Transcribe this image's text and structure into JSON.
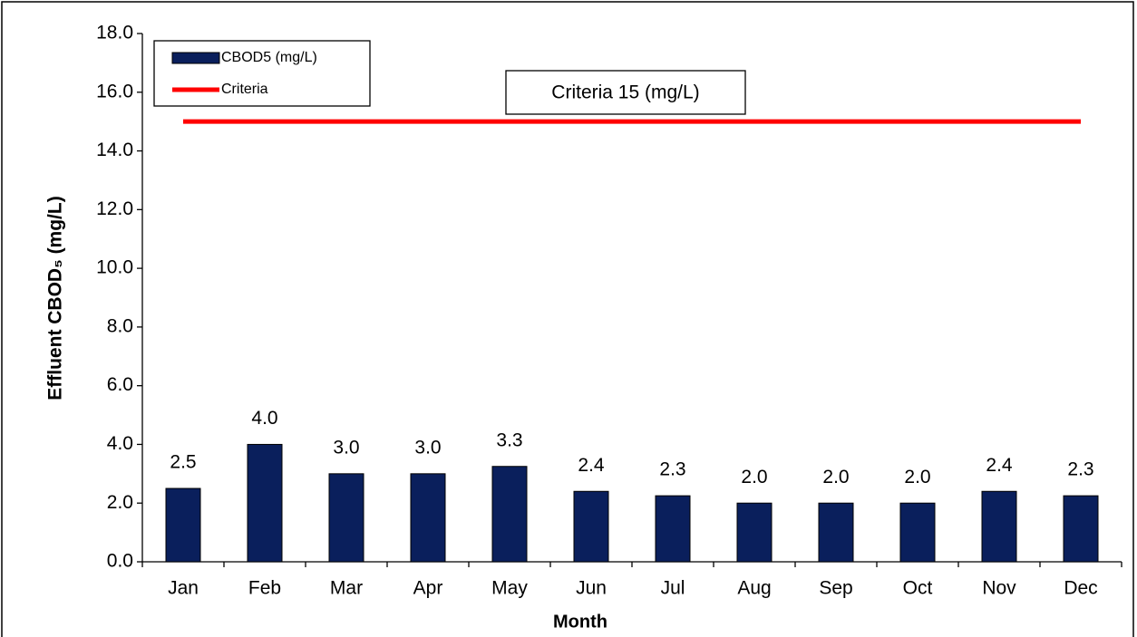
{
  "chart_data": {
    "type": "bar",
    "y_label": "Effluent CBOD₅ (mg/L)",
    "x_label": "Month",
    "annotation": "Criteria 15 (mg/L)",
    "categories": [
      "Jan",
      "Feb",
      "Mar",
      "Apr",
      "May",
      "Jun",
      "Jul",
      "Aug",
      "Sep",
      "Oct",
      "Nov",
      "Dec"
    ],
    "series": [
      {
        "name": "CBOD5 (mg/L)",
        "type": "bar",
        "color": "#0a1f5c",
        "values": [
          2.5,
          4.0,
          3.0,
          3.0,
          3.25,
          2.4,
          2.25,
          2.0,
          2.0,
          2.0,
          2.4,
          2.25
        ],
        "value_labels": [
          "2.5",
          "4.0",
          "3.0",
          "3.0",
          "3.3",
          "2.4",
          "2.3",
          "2.0",
          "2.0",
          "2.0",
          "2.4",
          "2.3"
        ]
      },
      {
        "name": "Criteria",
        "type": "line",
        "color": "#ff0000",
        "values": [
          15,
          15,
          15,
          15,
          15,
          15,
          15,
          15,
          15,
          15,
          15,
          15
        ]
      }
    ],
    "ylim": [
      0,
      18
    ],
    "yticks": [
      {
        "value": 0,
        "label": "0.0"
      },
      {
        "value": 2,
        "label": "2.0"
      },
      {
        "value": 4,
        "label": "4.0"
      },
      {
        "value": 6,
        "label": "6.0"
      },
      {
        "value": 8,
        "label": "8.0"
      },
      {
        "value": 10,
        "label": "10.0"
      },
      {
        "value": 12,
        "label": "12.0"
      },
      {
        "value": 14,
        "label": "14.0"
      },
      {
        "value": 16,
        "label": "16.0"
      },
      {
        "value": 18,
        "label": "18.0"
      }
    ],
    "grid": false,
    "legend": "upper left"
  }
}
